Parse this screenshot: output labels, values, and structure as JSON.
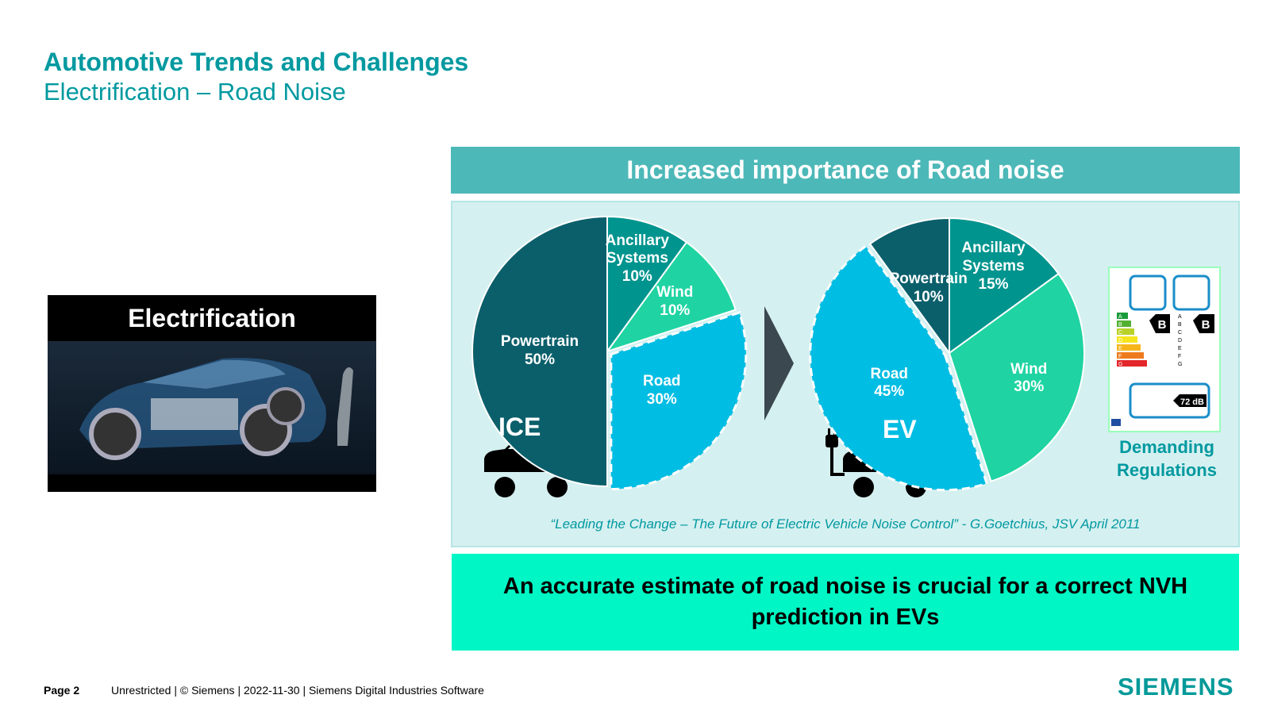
{
  "header": {
    "title": "Automotive Trends and Challenges",
    "subtitle": "Electrification – Road Noise"
  },
  "image_card": {
    "label": "Electrification"
  },
  "panel_title": "Increased importance of Road noise",
  "chart_data": [
    {
      "type": "pie",
      "title": "ICE",
      "categories": [
        "Ancillary Systems",
        "Wind",
        "Road",
        "Powertrain"
      ],
      "values": [
        10,
        10,
        30,
        50
      ],
      "value_labels": [
        "10%",
        "10%",
        "30%",
        "50%"
      ],
      "colors": [
        "#00948e",
        "#1fd4a2",
        "#00bde3",
        "#0b5f6b"
      ],
      "highlight": "Road"
    },
    {
      "type": "pie",
      "title": "EV",
      "categories": [
        "Ancillary Systems",
        "Wind",
        "Road",
        "Powertrain"
      ],
      "values": [
        15,
        30,
        45,
        10
      ],
      "value_labels": [
        "15%",
        "30%",
        "45%",
        "10%"
      ],
      "colors": [
        "#00948e",
        "#1fd4a2",
        "#00bde3",
        "#0b5f6b"
      ],
      "highlight": "Road"
    }
  ],
  "regulation": {
    "label": "Demanding Regulations",
    "grades": [
      "A",
      "B",
      "C",
      "D",
      "E",
      "F",
      "G"
    ],
    "fuel_grade": "B",
    "wet_grade": "B",
    "noise": "72 dB"
  },
  "citation": "“Leading the Change – The Future of Electric Vehicle Noise Control” - G.Goetchius, JSV April 2011",
  "conclusion": "An accurate estimate of road noise is crucial for a correct NVH prediction in EVs",
  "footer": {
    "page": "Page 2",
    "info": "Unrestricted | © Siemens | 2022-11-30 | Siemens Digital Industries Software",
    "logo": "SIEMENS"
  }
}
